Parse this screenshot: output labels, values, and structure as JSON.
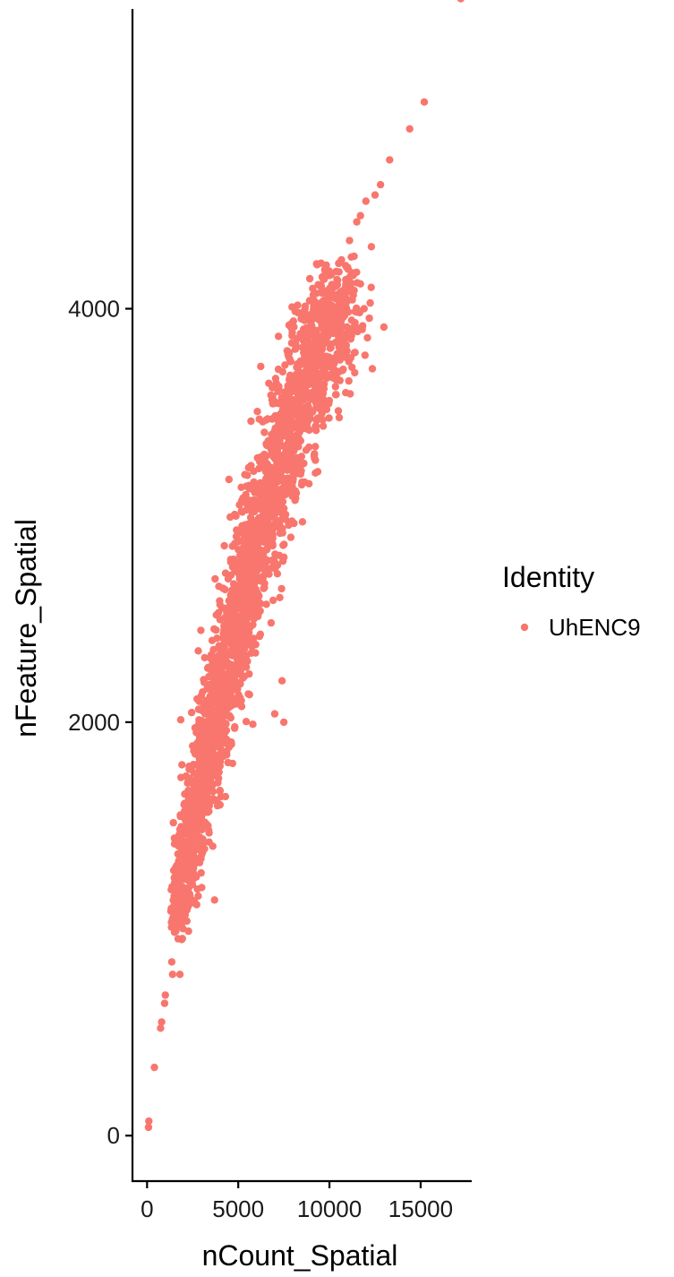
{
  "chart_data": {
    "type": "scatter",
    "title": "",
    "xlabel": "nCount_Spatial",
    "ylabel": "nFeature_Spatial",
    "xlim": [
      -800,
      17800
    ],
    "ylim": [
      -220,
      5450
    ],
    "x_ticks": [
      0,
      5000,
      10000,
      15000
    ],
    "x_tick_labels": [
      "0",
      "5000",
      "10000",
      "15000"
    ],
    "y_ticks": [
      0,
      2000,
      4000
    ],
    "y_tick_labels": [
      "0",
      "2000",
      "4000"
    ],
    "grid": false,
    "legend": {
      "title": "Identity",
      "position": "right",
      "entries": [
        {
          "label": "UhENC9",
          "color": "#F8766D"
        }
      ]
    },
    "series": [
      {
        "name": "UhENC9",
        "color": "#F8766D",
        "trend": {
          "x": [
            1500,
            2000,
            3000,
            4000,
            5000,
            6000,
            7000,
            8000,
            9000,
            10000,
            11000
          ],
          "y": [
            1000,
            1250,
            1700,
            2100,
            2500,
            2850,
            3150,
            3450,
            3700,
            3950,
            4150
          ],
          "n_points": 2600
        },
        "outliers": [
          [
            17200,
            5500
          ],
          [
            15200,
            5000
          ],
          [
            14400,
            4870
          ],
          [
            13300,
            4720
          ],
          [
            12800,
            4600
          ],
          [
            12500,
            4550
          ],
          [
            12000,
            4520
          ],
          [
            12300,
            4300
          ],
          [
            11500,
            4420
          ],
          [
            11200,
            4250
          ],
          [
            11700,
            4120
          ],
          [
            11000,
            4200
          ],
          [
            10900,
            4120
          ],
          [
            11900,
            4000
          ],
          [
            11700,
            4450
          ],
          [
            11100,
            4330
          ],
          [
            10300,
            4050
          ],
          [
            11800,
            3900
          ],
          [
            8300,
            3980
          ],
          [
            7600,
            2980
          ],
          [
            7700,
            3180
          ],
          [
            7500,
            2000
          ],
          [
            7000,
            2040
          ],
          [
            7400,
            2200
          ],
          [
            6800,
            2480
          ],
          [
            4500,
            1880
          ],
          [
            5800,
            1990
          ],
          [
            4000,
            1600
          ],
          [
            4300,
            1640
          ],
          [
            3600,
            1400
          ],
          [
            3400,
            1420
          ],
          [
            3700,
            1140
          ],
          [
            3000,
            1200
          ],
          [
            1800,
            780
          ],
          [
            1400,
            780
          ],
          [
            1000,
            680
          ],
          [
            960,
            640
          ],
          [
            800,
            550
          ],
          [
            740,
            520
          ],
          [
            400,
            330
          ],
          [
            100,
            70
          ],
          [
            80,
            40
          ]
        ]
      }
    ]
  }
}
